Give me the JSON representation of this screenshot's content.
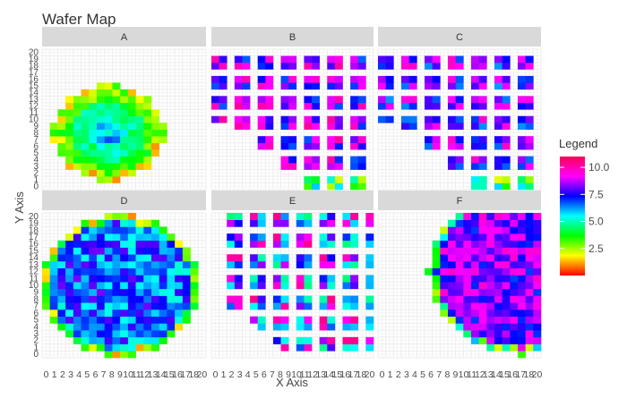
{
  "chart_data": {
    "type": "heatmap",
    "title": "Wafer Map",
    "xlabel": "X Axis",
    "ylabel": "Y Axis",
    "x_ticks": [
      "0",
      "1",
      "2",
      "3",
      "4",
      "5",
      "6",
      "7",
      "8",
      "9",
      "10",
      "11",
      "12",
      "13",
      "14",
      "15",
      "16",
      "17",
      "18",
      "20"
    ],
    "y_ticks": [
      "0",
      "1",
      "2",
      "3",
      "4",
      "5",
      "6",
      "7",
      "8",
      "9",
      "10",
      "11",
      "12",
      "13",
      "14",
      "15",
      "16",
      "17",
      "18",
      "19",
      "20"
    ],
    "xlim": [
      0,
      20
    ],
    "ylim": [
      0,
      20
    ],
    "grid": true,
    "panels": [
      {
        "name": "A",
        "description_pattern": "circle",
        "cx": 8,
        "cy": 8,
        "r": 7.2,
        "base": 5.6,
        "rings": true
      },
      {
        "name": "B",
        "description_pattern": "sparse-grid-lower-left-cut",
        "base": 8.4
      },
      {
        "name": "C",
        "description_pattern": "sparse-grid-lower-left-cut",
        "base": 8.0
      },
      {
        "name": "D",
        "description_pattern": "circle",
        "cx": 9.5,
        "cy": 10,
        "r": 10.2,
        "base": 6.5
      },
      {
        "name": "E",
        "description_pattern": "sparse-grid",
        "base": 10.5
      },
      {
        "name": "F",
        "description_pattern": "circle-offset",
        "cx": 18,
        "cy": 12,
        "r": 12,
        "base": 8.3
      }
    ],
    "legend": {
      "title": "Legend",
      "ticks": [
        2.5,
        5.0,
        7.5,
        10.0
      ],
      "tick_labels": [
        "2.5",
        "5.0",
        "7.5",
        "10.0"
      ],
      "range": [
        0,
        11
      ],
      "placement": "right",
      "colors": [
        "#ff0000",
        "#ffff00",
        "#00ff00",
        "#00ffff",
        "#0000ff",
        "#ff00ff",
        "#ff0055"
      ]
    }
  }
}
